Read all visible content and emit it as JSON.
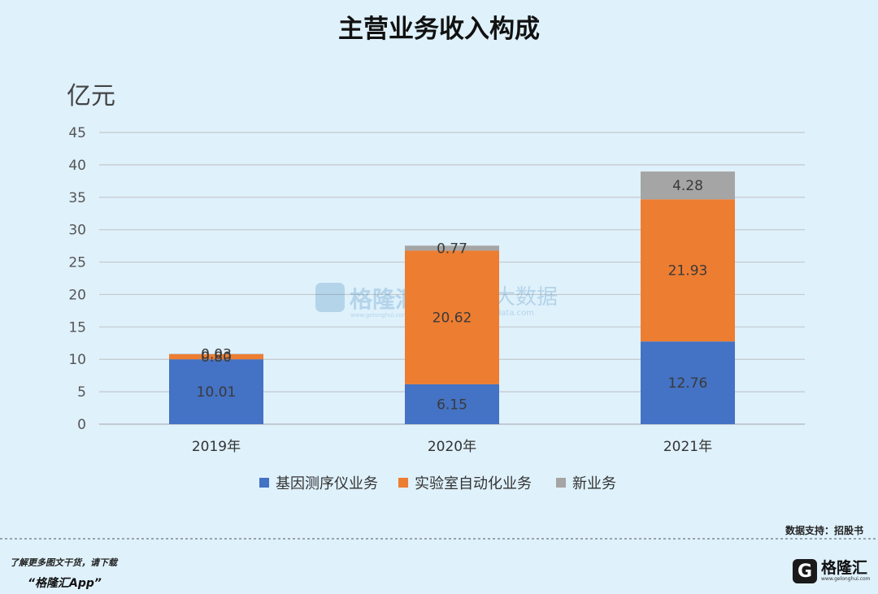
{
  "chart_data": {
    "type": "bar",
    "stacked": true,
    "title": "主营业务收入构成",
    "ylabel": "亿元",
    "ylim": [
      0,
      45
    ],
    "yticks": [
      0,
      5,
      10,
      15,
      20,
      25,
      30,
      35,
      40,
      45
    ],
    "grid": true,
    "legend_position": "bottom",
    "categories": [
      "2019年",
      "2020年",
      "2021年"
    ],
    "series": [
      {
        "name": "基因测序仪业务",
        "color": "#4472c4",
        "values": [
          10.01,
          6.15,
          12.76
        ],
        "labels": [
          "10.01",
          "6.15",
          "12.76"
        ]
      },
      {
        "name": "实验室自动化业务",
        "color": "#ed7d31",
        "values": [
          0.8,
          20.62,
          21.93
        ],
        "labels": [
          "0.80",
          "20.62",
          "21.93"
        ]
      },
      {
        "name": "新业务",
        "color": "#a5a5a5",
        "values": [
          0.03,
          0.77,
          4.28
        ],
        "labels": [
          "0.03",
          "0.77",
          "4.28"
        ]
      }
    ]
  },
  "watermark": {
    "left_brand": "格隆汇",
    "left_url": "www.gelonghui.com",
    "right_brand": "勾股大数据",
    "right_url": "www.gogudata.com"
  },
  "source_note": "数据支持：招股书",
  "footer": {
    "line1": "了解更多图文干货，请下载",
    "line2": "“格隆汇App”"
  },
  "logo": {
    "mark": "G",
    "name": "格隆汇",
    "url": "www.gelonghui.com"
  }
}
